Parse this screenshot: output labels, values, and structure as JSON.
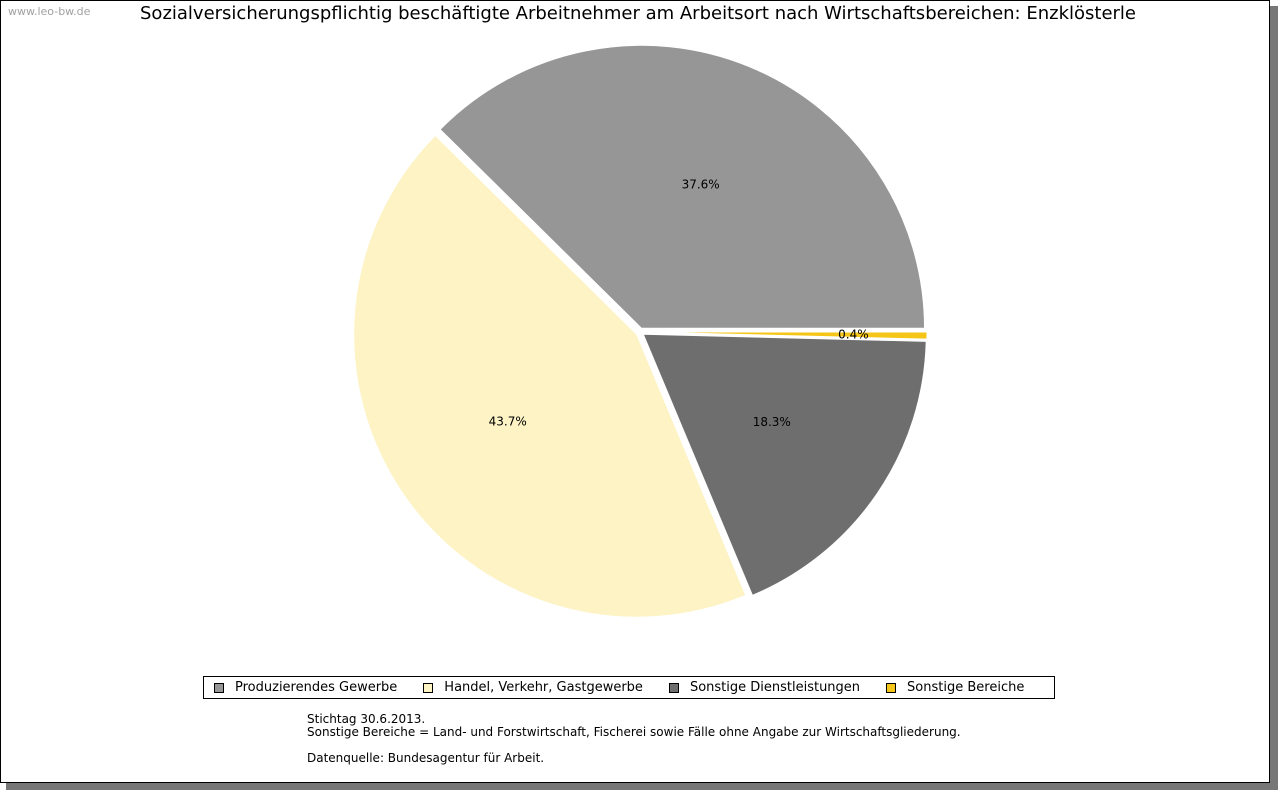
{
  "watermark": "www.leo-bw.de",
  "chart_data": {
    "type": "pie",
    "title": "Sozialversicherungspflichtig beschäftigte Arbeitnehmer am Arbeitsort nach Wirtschaftsbereichen: Enzklösterle",
    "slices": [
      {
        "name": "Produzierendes Gewerbe",
        "value": 37.6,
        "label": "37.6%",
        "color": "#969696"
      },
      {
        "name": "Sonstige Bereiche",
        "value": 0.4,
        "label": "0.4%",
        "color": "#f5c518"
      },
      {
        "name": "Sonstige Dienstleistungen",
        "value": 18.3,
        "label": "18.3%",
        "color": "#6e6e6e"
      },
      {
        "name": "Handel, Verkehr, Gastgewerbe",
        "value": 43.7,
        "label": "43.7%",
        "color": "#fdf3c5"
      }
    ],
    "legend": [
      {
        "name": "Produzierendes Gewerbe",
        "color": "#969696"
      },
      {
        "name": "Handel, Verkehr, Gastgewerbe",
        "color": "#fdf3c5"
      },
      {
        "name": "Sonstige Dienstleistungen",
        "color": "#6e6e6e"
      },
      {
        "name": "Sonstige Bereiche",
        "color": "#f5c518"
      }
    ],
    "legend_position": "bottom"
  },
  "notes": {
    "line1": "Stichtag 30.6.2013.",
    "line2": "Sonstige Bereiche = Land- und Forstwirtschaft, Fischerei sowie Fälle ohne Angabe zur Wirtschaftsgliederung.",
    "line3": "Datenquelle: Bundesagentur für Arbeit."
  }
}
